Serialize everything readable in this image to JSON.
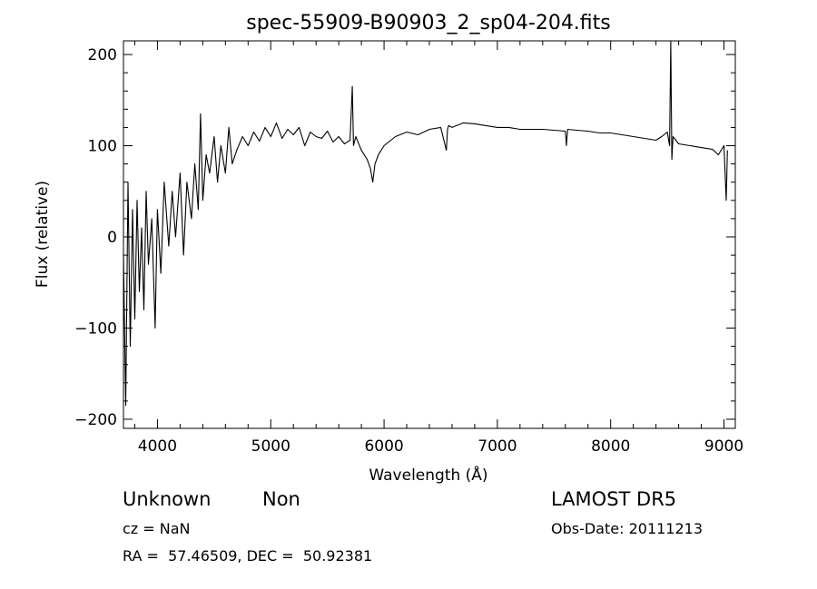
{
  "chart_data": {
    "type": "line",
    "title": "spec-55909-B90903_2_sp04-204.fits",
    "xlabel": "Wavelength (Å)",
    "ylabel": "Flux (relative)",
    "xlim": [
      3700,
      9100
    ],
    "ylim": [
      -210,
      215
    ],
    "x_ticks": [
      4000,
      5000,
      6000,
      7000,
      8000,
      9000
    ],
    "y_ticks": [
      -200,
      -100,
      0,
      100,
      200
    ],
    "grid": false,
    "series": [
      {
        "x": [
          3700,
          3720,
          3740,
          3760,
          3780,
          3800,
          3820,
          3840,
          3860,
          3880,
          3900,
          3920,
          3950,
          3980,
          4000,
          4030,
          4060,
          4100,
          4130,
          4160,
          4200,
          4230,
          4260,
          4300,
          4330,
          4360,
          4380,
          4400,
          4430,
          4460,
          4500,
          4530,
          4560,
          4600,
          4630,
          4660,
          4700,
          4750,
          4800,
          4850,
          4900,
          4950,
          5000,
          5050,
          5100,
          5150,
          5200,
          5250,
          5300,
          5350,
          5400,
          5450,
          5500,
          5550,
          5600,
          5650,
          5700,
          5720,
          5730,
          5750,
          5800,
          5850,
          5880,
          5900,
          5920,
          5950,
          6000,
          6050,
          6100,
          6200,
          6300,
          6400,
          6500,
          6550,
          6560,
          6570,
          6600,
          6700,
          6800,
          6900,
          7000,
          7100,
          7200,
          7300,
          7400,
          7500,
          7600,
          7610,
          7620,
          7700,
          7800,
          7900,
          8000,
          8100,
          8200,
          8300,
          8400,
          8450,
          8500,
          8520,
          8530,
          8540,
          8550,
          8600,
          8700,
          8800,
          8900,
          8950,
          9000,
          9020,
          9030
        ],
        "values": [
          -20,
          -185,
          60,
          -120,
          30,
          -90,
          40,
          -60,
          10,
          -80,
          50,
          -30,
          20,
          -100,
          30,
          -40,
          60,
          -10,
          50,
          0,
          70,
          -20,
          60,
          20,
          80,
          30,
          135,
          40,
          90,
          70,
          110,
          60,
          100,
          70,
          120,
          80,
          95,
          110,
          100,
          115,
          105,
          120,
          110,
          125,
          108,
          118,
          112,
          120,
          100,
          115,
          110,
          108,
          116,
          104,
          110,
          102,
          106,
          165,
          100,
          110,
          95,
          85,
          75,
          60,
          80,
          90,
          100,
          105,
          110,
          115,
          112,
          118,
          120,
          95,
          118,
          122,
          120,
          125,
          124,
          122,
          120,
          120,
          118,
          118,
          118,
          117,
          116,
          100,
          118,
          117,
          116,
          114,
          114,
          112,
          110,
          108,
          106,
          110,
          115,
          100,
          215,
          85,
          110,
          102,
          100,
          98,
          96,
          90,
          100,
          40,
          95
        ]
      }
    ]
  },
  "info": {
    "object_class": "Unknown",
    "object_subclass": "Non",
    "cz": "cz = NaN",
    "coords": "RA =  57.46509, DEC =  50.92381",
    "survey": "LAMOST DR5",
    "obs_date": "Obs-Date: 20111213"
  }
}
